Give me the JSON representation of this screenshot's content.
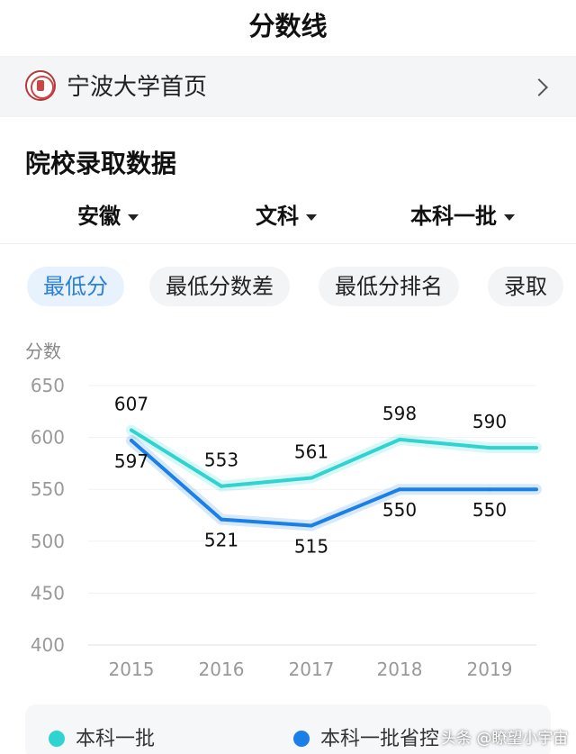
{
  "header": {
    "title": "分数线"
  },
  "home_link": {
    "label": "宁波大学首页",
    "icon": "university-seal-icon"
  },
  "section": {
    "title": "院校录取数据"
  },
  "filters": [
    {
      "label": "安徽"
    },
    {
      "label": "文科"
    },
    {
      "label": "本科一批"
    }
  ],
  "chips": [
    {
      "label": "最低分",
      "active": true
    },
    {
      "label": "最低分数差",
      "active": false
    },
    {
      "label": "最低分排名",
      "active": false
    },
    {
      "label": "录取",
      "active": false
    }
  ],
  "colors": {
    "series1": "#2fd3d0",
    "series2": "#1a7fe6",
    "accent": "#2b7fd8"
  },
  "chart_data": {
    "type": "line",
    "ylabel": "分数",
    "x": [
      "2015",
      "2016",
      "2017",
      "2018",
      "2019"
    ],
    "ylim": [
      400,
      650
    ],
    "yticks": [
      400,
      450,
      500,
      550,
      600,
      650
    ],
    "grid": true,
    "series": [
      {
        "name": "本科一批",
        "values": [
          607,
          553,
          561,
          598,
          590
        ],
        "labels": [
          "607",
          "553",
          "561",
          "598",
          "590"
        ]
      },
      {
        "name": "本科一批省控",
        "values": [
          597,
          521,
          515,
          550,
          550
        ],
        "labels": [
          "597",
          "521",
          "515",
          "550",
          "550"
        ]
      }
    ],
    "legend_position": "bottom"
  },
  "watermark": "头条 @瞭望小宇宙"
}
